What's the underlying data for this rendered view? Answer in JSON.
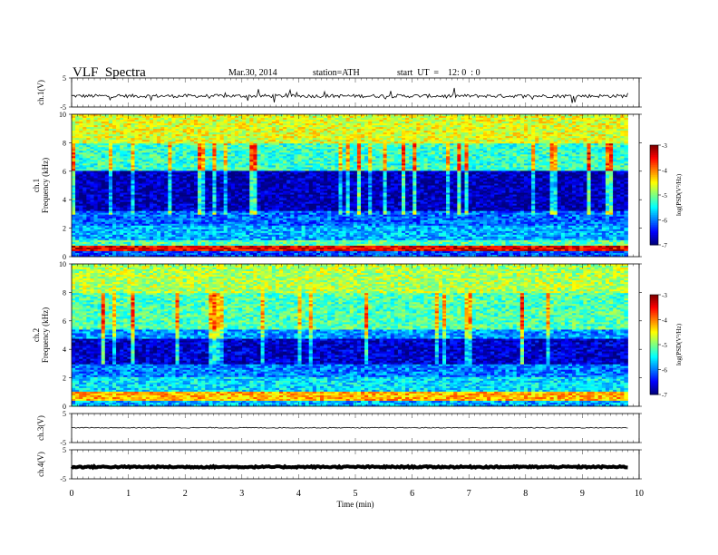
{
  "header": {
    "title": "VLF  Spectra",
    "date": "Mar.30, 2014",
    "station": "station=ATH",
    "start": "start  UT  =    12: 0  : 0"
  },
  "colorbar": {
    "label": "log(PSD(V²/Hz)",
    "ticks": [
      "-3",
      "-4",
      "-5",
      "-6",
      "-7"
    ]
  },
  "chart_data": [
    {
      "type": "line",
      "name": "ch1-waveform",
      "ylabel": "ch.1(V)",
      "ylim": [
        -5,
        5
      ],
      "yticks": [
        "5",
        "-5"
      ],
      "xlim": [
        0,
        10
      ],
      "data_end_min": 9.8,
      "baseline": -1.2,
      "noise_amplitude": 0.6,
      "color": "#000000"
    },
    {
      "type": "heatmap",
      "name": "ch1-spectrogram",
      "ylabel": "ch.1\nFrequency  (kHz)",
      "ylim": [
        0,
        10
      ],
      "yticks": [
        "10",
        "8",
        "6",
        "4",
        "2",
        "0"
      ],
      "xlim": [
        0,
        10
      ],
      "data_end_min": 9.8,
      "zlabel": "log(PSD(V²/Hz)",
      "zlim": [
        -7,
        -3
      ],
      "profile_note": "high PSD below 1 kHz, low PSD 3-6 kHz, green/yellow above 6 kHz, red near 9-10 kHz",
      "bands": [
        {
          "f_low": 0.0,
          "f_high": 0.4,
          "level": -6.2
        },
        {
          "f_low": 0.4,
          "f_high": 0.8,
          "level": -3.4
        },
        {
          "f_low": 0.8,
          "f_high": 1.2,
          "level": -5.2
        },
        {
          "f_low": 1.2,
          "f_high": 2.2,
          "level": -5.8
        },
        {
          "f_low": 2.2,
          "f_high": 3.2,
          "level": -6.1
        },
        {
          "f_low": 3.2,
          "f_high": 6.0,
          "level": -6.8
        },
        {
          "f_low": 6.0,
          "f_high": 8.0,
          "level": -5.3
        },
        {
          "f_low": 8.0,
          "f_high": 10.0,
          "level": -4.6
        }
      ]
    },
    {
      "type": "heatmap",
      "name": "ch2-spectrogram",
      "ylabel": "ch.2\nFrequency  (kHz)",
      "ylim": [
        0,
        10
      ],
      "yticks": [
        "10",
        "8",
        "6",
        "4",
        "2",
        "0"
      ],
      "xlim": [
        0,
        10
      ],
      "data_end_min": 9.8,
      "zlabel": "log(PSD(V²/Hz)",
      "zlim": [
        -7,
        -3
      ],
      "profile_note": "similar to ch.1 with cyan band near 5 kHz and red line near 2.3 kHz between 1.5-5.4 min",
      "bands": [
        {
          "f_low": 0.0,
          "f_high": 0.4,
          "level": -5.8
        },
        {
          "f_low": 0.4,
          "f_high": 1.0,
          "level": -4.2
        },
        {
          "f_low": 1.0,
          "f_high": 2.0,
          "level": -5.6
        },
        {
          "f_low": 2.0,
          "f_high": 3.0,
          "level": -6.0
        },
        {
          "f_low": 3.0,
          "f_high": 4.8,
          "level": -6.7
        },
        {
          "f_low": 4.8,
          "f_high": 5.4,
          "level": -5.9
        },
        {
          "f_low": 5.4,
          "f_high": 8.0,
          "level": -5.2
        },
        {
          "f_low": 8.0,
          "f_high": 10.0,
          "level": -4.8
        }
      ]
    },
    {
      "type": "line",
      "name": "ch3-waveform",
      "ylabel": "ch.3(V)",
      "ylim": [
        -5,
        5
      ],
      "yticks": [
        "5",
        "-5"
      ],
      "xlim": [
        0,
        10
      ],
      "data_end_min": 9.8,
      "baseline": 0.1,
      "noise_amplitude": 0.15,
      "color": "#000000"
    },
    {
      "type": "line",
      "name": "ch4-waveform",
      "ylabel": "ch.4(V)",
      "ylim": [
        -5,
        5
      ],
      "yticks": [
        "5",
        "-5"
      ],
      "xlim": [
        0,
        10
      ],
      "data_end_min": 9.8,
      "baseline": -0.9,
      "noise_amplitude": 0.25,
      "color": "#000000"
    }
  ],
  "xaxis": {
    "label": "Time  (min)",
    "ticks": [
      "0",
      "1",
      "2",
      "3",
      "4",
      "5",
      "6",
      "7",
      "8",
      "9",
      "10"
    ]
  }
}
